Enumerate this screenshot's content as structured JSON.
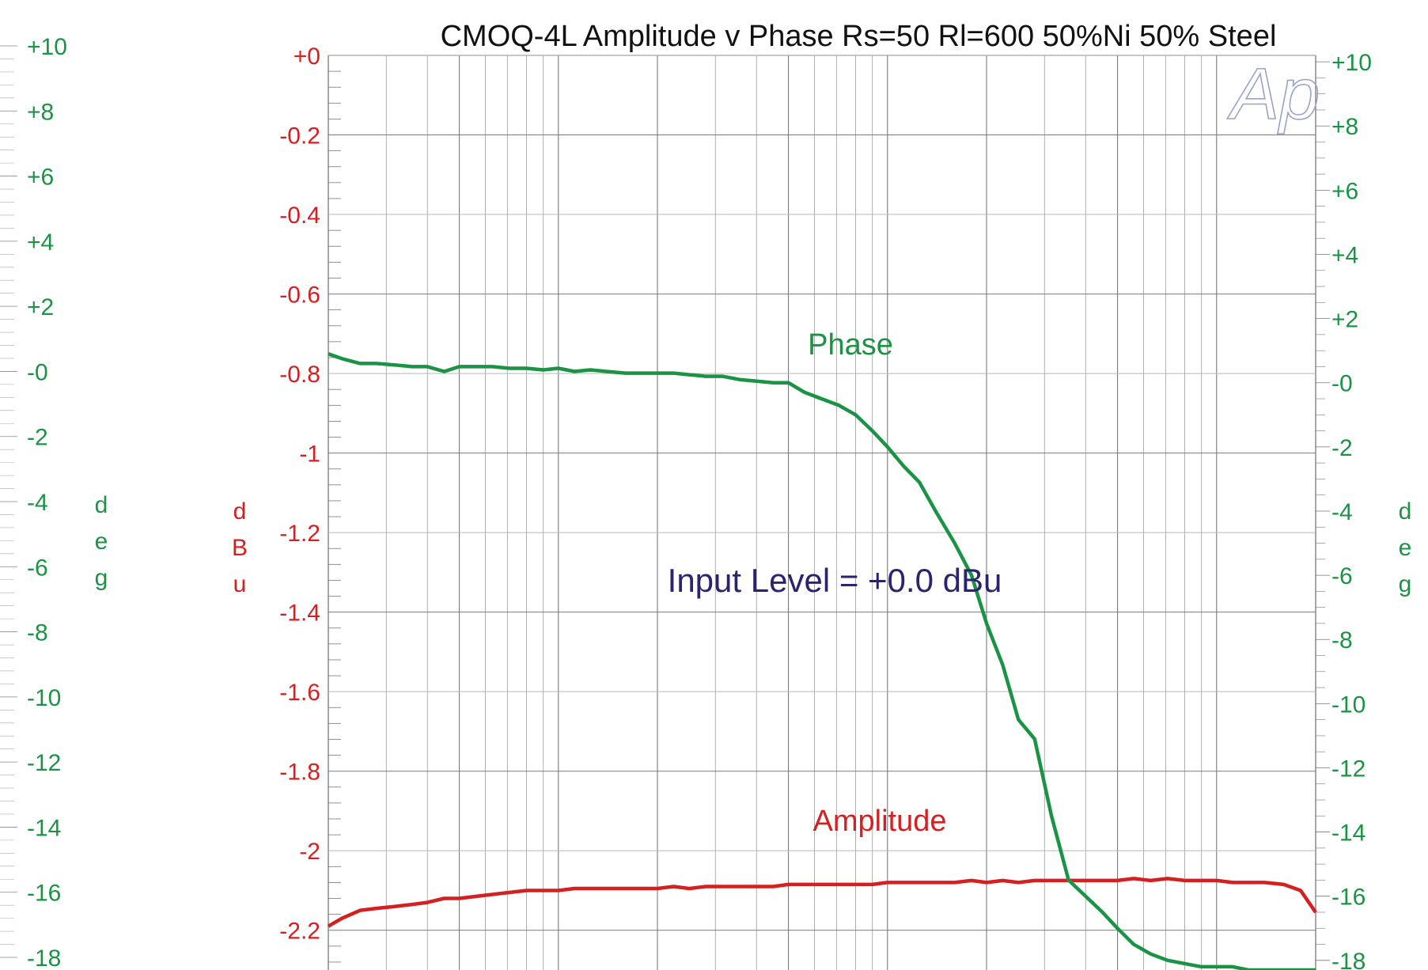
{
  "chart_data": {
    "type": "line",
    "title": "CMOQ-4L   Amplitude v Phase Rs=50 Rl=600 50%Ni 50% Steel",
    "annotation": "Input Level =  +0.0 dBu",
    "x_scale": "log",
    "xlim": [
      20,
      20000
    ],
    "left_axis": {
      "label": "dBu",
      "ylim": [
        -2.3,
        0
      ],
      "tick_labels": [
        "+0",
        "-0.2",
        "-0.4",
        "-0.6",
        "-0.8",
        "-1",
        "-1.2",
        "-1.4",
        "-1.6",
        "-1.8",
        "-2",
        "-2.2"
      ],
      "tick_values": [
        0,
        -0.2,
        -0.4,
        -0.6,
        -0.8,
        -1,
        -1.2,
        -1.4,
        -1.6,
        -1.8,
        -2,
        -2.2
      ],
      "color": "#d42020"
    },
    "right_axis": {
      "label": "deg",
      "ylim": [
        -18.3,
        10.2
      ],
      "tick_labels": [
        "+10",
        "+8",
        "+6",
        "+4",
        "+2",
        "-0",
        "-2",
        "-4",
        "-6",
        "-8",
        "-10",
        "-12",
        "-14",
        "-16",
        "-18"
      ],
      "tick_values": [
        10,
        8,
        6,
        4,
        2,
        0,
        -2,
        -4,
        -6,
        -8,
        -10,
        -12,
        -14,
        -16,
        -18
      ],
      "color": "#1a9444"
    },
    "outer_left_axis": {
      "label": "deg",
      "tick_labels": [
        "+10",
        "+8",
        "+6",
        "+4",
        "+2",
        "-0",
        "-2",
        "-4",
        "-6",
        "-8",
        "-10",
        "-12",
        "-14",
        "-16",
        "-18"
      ],
      "tick_values": [
        10,
        8,
        6,
        4,
        2,
        0,
        -2,
        -4,
        -6,
        -8,
        -10,
        -12,
        -14,
        -16,
        -18
      ],
      "color": "#1a9444"
    },
    "grid": true,
    "logo": "Ap",
    "series": [
      {
        "name": "Amplitude",
        "axis": "left",
        "color": "#d42020",
        "x": [
          20,
          22,
          25,
          28,
          32,
          36,
          40,
          45,
          50,
          56,
          63,
          71,
          80,
          90,
          100,
          112,
          125,
          140,
          160,
          180,
          200,
          224,
          250,
          280,
          315,
          355,
          400,
          450,
          500,
          560,
          630,
          710,
          800,
          900,
          1000,
          1120,
          1250,
          1400,
          1600,
          1800,
          2000,
          2240,
          2500,
          2800,
          3150,
          3550,
          4000,
          4500,
          5000,
          5600,
          6300,
          7100,
          8000,
          9000,
          10000,
          11200,
          12500,
          14000,
          16000,
          18000,
          20000
        ],
        "values": [
          -2.19,
          -2.17,
          -2.15,
          -2.145,
          -2.14,
          -2.135,
          -2.13,
          -2.12,
          -2.12,
          -2.115,
          -2.11,
          -2.105,
          -2.1,
          -2.1,
          -2.1,
          -2.095,
          -2.095,
          -2.095,
          -2.095,
          -2.095,
          -2.095,
          -2.09,
          -2.095,
          -2.09,
          -2.09,
          -2.09,
          -2.09,
          -2.09,
          -2.085,
          -2.085,
          -2.085,
          -2.085,
          -2.085,
          -2.085,
          -2.08,
          -2.08,
          -2.08,
          -2.08,
          -2.08,
          -2.075,
          -2.08,
          -2.075,
          -2.08,
          -2.075,
          -2.075,
          -2.075,
          -2.075,
          -2.075,
          -2.075,
          -2.07,
          -2.075,
          -2.07,
          -2.075,
          -2.075,
          -2.075,
          -2.08,
          -2.08,
          -2.08,
          -2.085,
          -2.1,
          -2.155
        ]
      },
      {
        "name": "Phase",
        "axis": "right",
        "color": "#1a9444",
        "x": [
          20,
          22,
          25,
          28,
          32,
          36,
          40,
          45,
          50,
          56,
          63,
          71,
          80,
          90,
          100,
          112,
          125,
          140,
          160,
          180,
          200,
          224,
          250,
          280,
          315,
          355,
          400,
          450,
          500,
          560,
          630,
          710,
          800,
          900,
          1000,
          1120,
          1250,
          1400,
          1600,
          1800,
          2000,
          2240,
          2500,
          2800,
          3150,
          3550,
          4000,
          4500,
          5000,
          5600,
          6300,
          7100,
          8000,
          9000,
          10000,
          11200,
          12500,
          14000,
          16000,
          18000,
          20000
        ],
        "values": [
          0.9,
          0.75,
          0.6,
          0.6,
          0.55,
          0.5,
          0.5,
          0.35,
          0.5,
          0.5,
          0.5,
          0.45,
          0.45,
          0.4,
          0.45,
          0.35,
          0.4,
          0.35,
          0.3,
          0.3,
          0.3,
          0.3,
          0.25,
          0.2,
          0.2,
          0.1,
          0.05,
          0.0,
          0.0,
          -0.3,
          -0.5,
          -0.7,
          -1.0,
          -1.5,
          -2.0,
          -2.6,
          -3.1,
          -4.0,
          -5.0,
          -6.0,
          -7.5,
          -8.8,
          -10.5,
          -11.1,
          -13.5,
          -15.5,
          -16.0,
          -16.5,
          -17.0,
          -17.5,
          -17.8,
          -18.0,
          -18.1,
          -18.2,
          -18.2,
          -18.2,
          -18.3,
          -18.3,
          -18.3,
          -18.3,
          -18.3
        ]
      }
    ]
  }
}
